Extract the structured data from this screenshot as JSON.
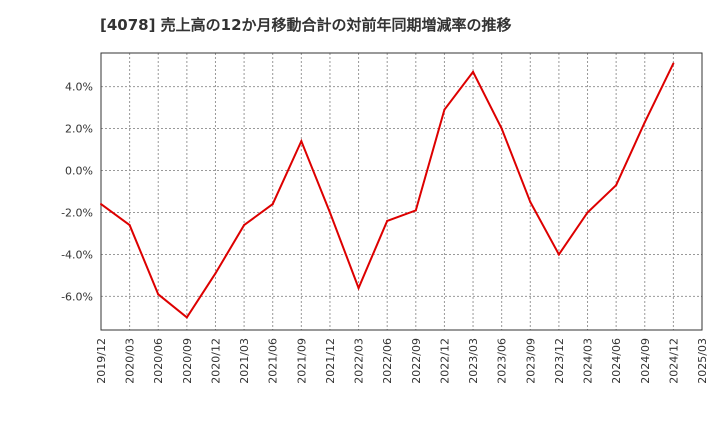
{
  "chart_data": {
    "type": "line",
    "title": "[4078]  売上高の12か月移動合計の対前年同期増減率の推移",
    "xlabel": "",
    "ylabel": "",
    "x": [
      "2019/12",
      "2020/03",
      "2020/06",
      "2020/09",
      "2020/12",
      "2021/03",
      "2021/06",
      "2021/09",
      "2021/12",
      "2022/03",
      "2022/06",
      "2022/09",
      "2022/12",
      "2023/03",
      "2023/06",
      "2023/09",
      "2023/12",
      "2024/03",
      "2024/06",
      "2024/09",
      "2024/12",
      "2025/03"
    ],
    "series": [
      {
        "name": "増減率",
        "color": "#dd0000",
        "values": [
          -1.6,
          -2.6,
          -5.9,
          -7.0,
          -4.9,
          -2.6,
          -1.6,
          1.4,
          -2.0,
          -5.6,
          -2.4,
          -1.9,
          2.9,
          4.7,
          2.0,
          -1.5,
          -4.0,
          -2.0,
          -0.7,
          2.3,
          5.1,
          null
        ]
      }
    ],
    "ylim": [
      -7.6,
      5.6
    ],
    "yticks": [
      4.0,
      2.0,
      0.0,
      -2.0,
      -4.0,
      -6.0
    ],
    "ytick_labels": [
      "4.0%",
      "2.0%",
      "0.0%",
      "-2.0%",
      "-4.0%",
      "-6.0%"
    ],
    "grid": true,
    "legend": "none"
  }
}
